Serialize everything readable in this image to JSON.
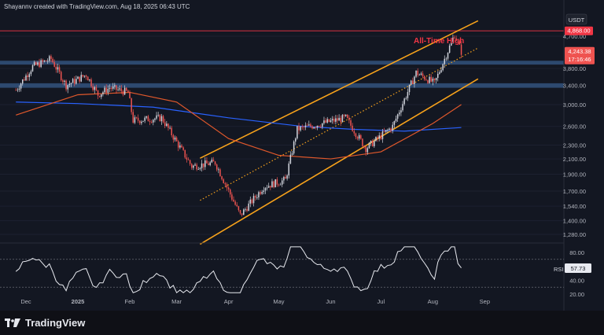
{
  "attribution": "Shayannv created with TradingView.com, Aug 18, 2025 06:43 UTC",
  "currency_label": "USDT",
  "annotation": "All-Time High",
  "ath_price_label": "4,868.00",
  "current_price_label": "4,243.38",
  "countdown_label": "17:16:46",
  "rsi_label": "RSI",
  "rsi_value_label": "57.73",
  "brand": "TradingView",
  "colors": {
    "background": "#131722",
    "up_candle": "#d1d4dc",
    "down_candle": "#ef5350",
    "channel": "#f7a21b",
    "ema_blue": "#2962ff",
    "ema_orange": "#e0582b",
    "ath_line": "#f23645",
    "resistance_band": "#33527c",
    "rsi_line": "#e8eaf0"
  },
  "chart_data": {
    "type": "candlestick",
    "title": "",
    "y_scale": "log",
    "y_ticks": [
      "4,700.00",
      "3,800.00",
      "3,400.00",
      "3,000.00",
      "2,600.00",
      "2,300.00",
      "2,100.00",
      "1,900.00",
      "1,700.00",
      "1,540.00",
      "1,400.00",
      "1,280.00"
    ],
    "x_ticks": [
      "Dec",
      "2025",
      "Feb",
      "Mar",
      "Apr",
      "May",
      "Jun",
      "Jul",
      "Aug",
      "Sep"
    ],
    "price_path": [
      {
        "date": "2024-11-25",
        "price": 3300
      },
      {
        "date": "2024-12-05",
        "price": 3850
      },
      {
        "date": "2024-12-16",
        "price": 4050
      },
      {
        "date": "2024-12-25",
        "price": 3400
      },
      {
        "date": "2025-01-06",
        "price": 3650
      },
      {
        "date": "2025-01-13",
        "price": 3200
      },
      {
        "date": "2025-01-20",
        "price": 3350
      },
      {
        "date": "2025-01-31",
        "price": 3250
      },
      {
        "date": "2025-02-03",
        "price": 2700
      },
      {
        "date": "2025-02-20",
        "price": 2750
      },
      {
        "date": "2025-03-10",
        "price": 2000
      },
      {
        "date": "2025-03-24",
        "price": 2050
      },
      {
        "date": "2025-04-08",
        "price": 1450
      },
      {
        "date": "2025-04-22",
        "price": 1750
      },
      {
        "date": "2025-05-05",
        "price": 1830
      },
      {
        "date": "2025-05-12",
        "price": 2550
      },
      {
        "date": "2025-06-10",
        "price": 2750
      },
      {
        "date": "2025-06-22",
        "price": 2250
      },
      {
        "date": "2025-07-08",
        "price": 2600
      },
      {
        "date": "2025-07-22",
        "price": 3700
      },
      {
        "date": "2025-08-02",
        "price": 3450
      },
      {
        "date": "2025-08-14",
        "price": 4750
      },
      {
        "date": "2025-08-18",
        "price": 4243
      }
    ],
    "ath_price": 4868,
    "current_price": 4243.38,
    "resistance_zones": [
      [
        3900,
        4000
      ],
      [
        3350,
        3450
      ]
    ],
    "channel": {
      "upper": [
        {
          "date": "2025-03-15",
          "price": 2110
        },
        {
          "date": "2025-08-28",
          "price": 5200
        }
      ],
      "mid": [
        {
          "date": "2025-03-15",
          "price": 1600
        },
        {
          "date": "2025-08-28",
          "price": 4350
        }
      ],
      "lower": [
        {
          "date": "2025-03-15",
          "price": 1200
        },
        {
          "date": "2025-08-28",
          "price": 3550
        }
      ]
    },
    "ema_blue": [
      {
        "date": "2024-11-25",
        "price": 3050
      },
      {
        "date": "2025-01-01",
        "price": 3020
      },
      {
        "date": "2025-02-15",
        "price": 2950
      },
      {
        "date": "2025-04-01",
        "price": 2750
      },
      {
        "date": "2025-05-15",
        "price": 2600
      },
      {
        "date": "2025-06-15",
        "price": 2550
      },
      {
        "date": "2025-07-15",
        "price": 2520
      },
      {
        "date": "2025-08-18",
        "price": 2580
      }
    ],
    "ema_orange": [
      {
        "date": "2024-11-25",
        "price": 2800
      },
      {
        "date": "2025-01-01",
        "price": 3200
      },
      {
        "date": "2025-02-01",
        "price": 3250
      },
      {
        "date": "2025-03-01",
        "price": 3050
      },
      {
        "date": "2025-04-01",
        "price": 2400
      },
      {
        "date": "2025-05-01",
        "price": 2150
      },
      {
        "date": "2025-06-01",
        "price": 2100
      },
      {
        "date": "2025-07-01",
        "price": 2200
      },
      {
        "date": "2025-08-01",
        "price": 2650
      },
      {
        "date": "2025-08-18",
        "price": 3000
      }
    ],
    "rsi": {
      "name": "RSI",
      "last": 57.73,
      "levels": [
        70,
        30
      ],
      "ticks": [
        "80.00",
        "40.00",
        "20.00"
      ]
    }
  }
}
